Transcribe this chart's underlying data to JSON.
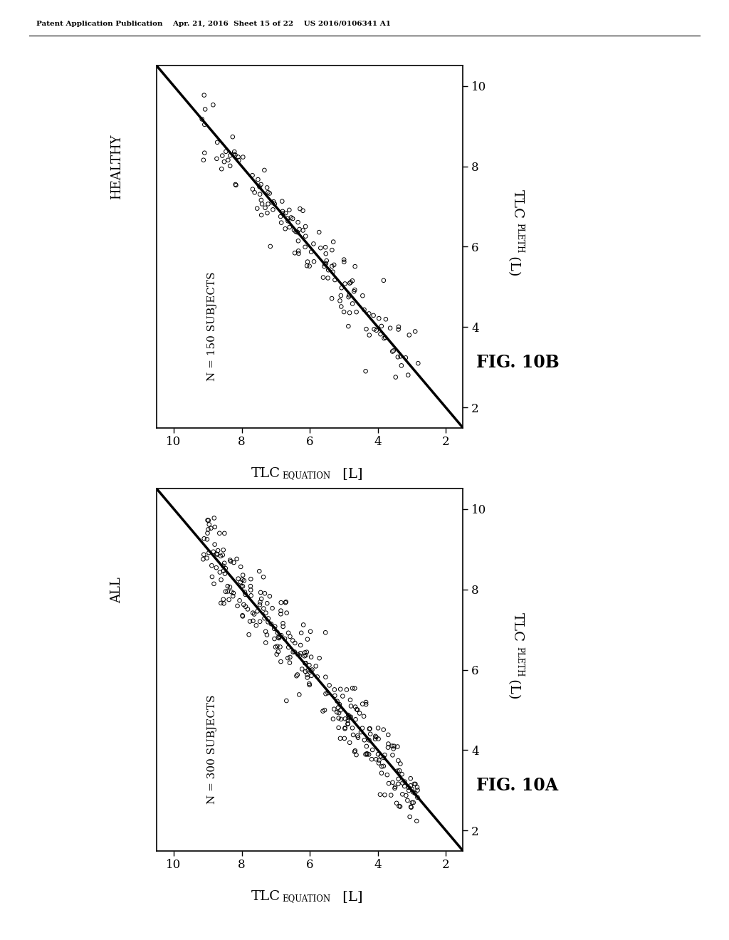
{
  "fig_width": 10.24,
  "fig_height": 13.2,
  "background_color": "#ffffff",
  "header_text": "Patent Application Publication    Apr. 21, 2016  Sheet 15 of 22    US 2016/0106341 A1",
  "plots": [
    {
      "label": "ALL",
      "n_label": "N = 300 SUBJECTS",
      "fig_label": "FIG. 10A",
      "n_subjects": 300,
      "seed": 42,
      "xlim": [
        10.5,
        1.5
      ],
      "ylim": [
        1.5,
        10.5
      ],
      "xticks": [
        10,
        8,
        6,
        4,
        2
      ],
      "yticks": [
        2,
        4,
        6,
        8,
        10
      ]
    },
    {
      "label": "HEALTHY",
      "n_label": "N = 150 SUBJECTS",
      "fig_label": "FIG. 10B",
      "n_subjects": 150,
      "seed": 123,
      "xlim": [
        10.5,
        1.5
      ],
      "ylim": [
        1.5,
        10.5
      ],
      "xticks": [
        10,
        8,
        6,
        4,
        2
      ],
      "yticks": [
        2,
        4,
        6,
        8,
        10
      ]
    }
  ]
}
